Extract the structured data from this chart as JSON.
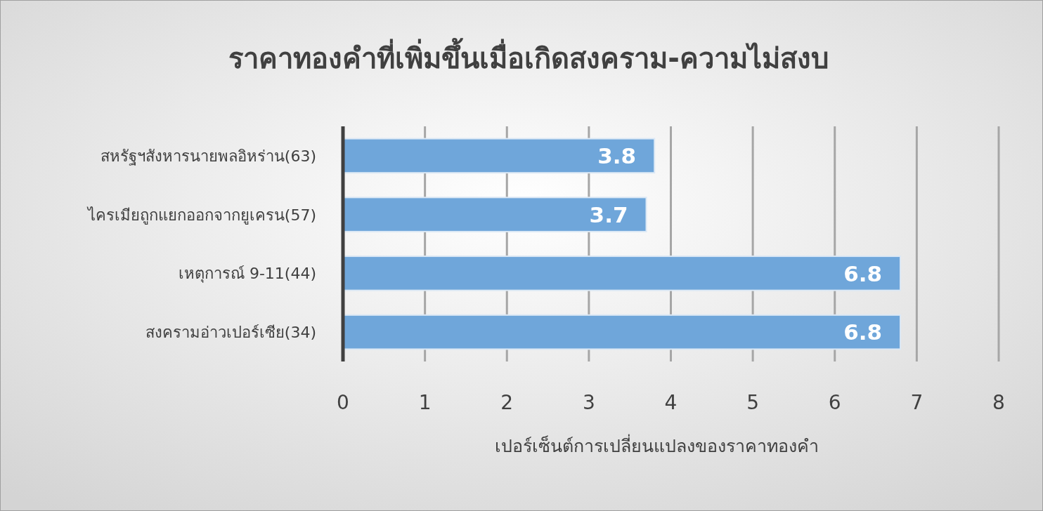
{
  "chart_data": {
    "type": "bar",
    "orientation": "horizontal",
    "title": "ราคาทองคำที่เพิ่มขึ้นเมื่อเกิดสงคราม-ความไม่สงบ",
    "xlabel": "เปอร์เซ็นต์การเปลี่ยนแปลงของราคาทองคำ",
    "categories": [
      "สหรัฐฯสังหารนายพลอิหร่าน(63)",
      "ไครเมียถูกแยกออกจากยูเครน(57)",
      "เหตุการณ์ 9-11(44)",
      "สงครามอ่าวเปอร์เซีย(34)"
    ],
    "values": [
      3.8,
      3.7,
      6.8,
      6.8
    ],
    "color": "#6fa6da",
    "data_labels": true,
    "xlim": [
      0,
      8
    ],
    "xticks": [
      0,
      1,
      2,
      3,
      4,
      5,
      6,
      7,
      8
    ],
    "grid": "x"
  }
}
